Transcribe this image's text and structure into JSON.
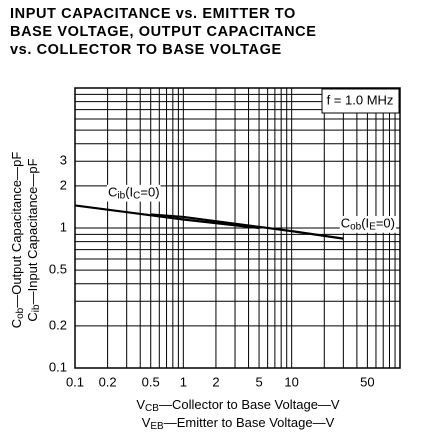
{
  "chart_data": {
    "type": "line",
    "title": [
      "INPUT CAPACITANCE vs. EMITTER TO",
      "BASE VOLTAGE, OUTPUT CAPACITANCE",
      "vs. COLLECTOR TO BASE VOLTAGE"
    ],
    "xlabel": [
      [
        {
          "text": "V"
        },
        {
          "text": "CB",
          "sub": true
        },
        {
          "text": "—Collector to Base Voltage—V"
        }
      ],
      [
        {
          "text": "V"
        },
        {
          "text": "EB",
          "sub": true
        },
        {
          "text": "—Emitter to Base Voltage—V"
        }
      ]
    ],
    "ylabel": [
      [
        {
          "text": "C"
        },
        {
          "text": "ob",
          "sub": true
        },
        {
          "text": "—Output Capacitance—pF"
        }
      ],
      [
        {
          "text": "C"
        },
        {
          "text": "ib",
          "sub": true
        },
        {
          "text": "—Input Capacitance—pF"
        }
      ]
    ],
    "xscale": "log",
    "yscale": "log",
    "xlim": [
      0.1,
      100
    ],
    "ylim": [
      0.1,
      10
    ],
    "xticks": [
      0.1,
      0.2,
      0.5,
      1,
      2,
      5,
      10,
      50
    ],
    "yticks": [
      0.1,
      0.2,
      0.5,
      1,
      2,
      3
    ],
    "xgrid": [
      0.1,
      0.2,
      0.3,
      0.4,
      0.5,
      0.6,
      0.7,
      0.8,
      0.9,
      1,
      2,
      3,
      4,
      5,
      6,
      7,
      8,
      9,
      10,
      20,
      30,
      40,
      50,
      60,
      70,
      80,
      90,
      100
    ],
    "ygrid": [
      0.1,
      0.2,
      0.3,
      0.4,
      0.5,
      0.6,
      0.7,
      0.8,
      0.9,
      1,
      2,
      3,
      4,
      5,
      6,
      7,
      8,
      9,
      10
    ],
    "annotation": "f = 1.0 MHz",
    "series": [
      {
        "name": [
          {
            "text": "C"
          },
          {
            "text": "ib",
            "sub": true
          },
          {
            "text": "(I"
          },
          {
            "text": "C",
            "sub": true
          },
          {
            "text": "=0)"
          }
        ],
        "color": "#000",
        "x": [
          0.1,
          1,
          5
        ],
        "values": [
          1.45,
          1.15,
          1.0
        ]
      },
      {
        "name": [
          {
            "text": "C"
          },
          {
            "text": "ob",
            "sub": true
          },
          {
            "text": "(I"
          },
          {
            "text": "E",
            "sub": true
          },
          {
            "text": "=0)"
          }
        ],
        "color": "#000",
        "x": [
          0.5,
          1,
          10,
          30
        ],
        "values": [
          1.25,
          1.2,
          0.95,
          0.84
        ]
      }
    ]
  }
}
